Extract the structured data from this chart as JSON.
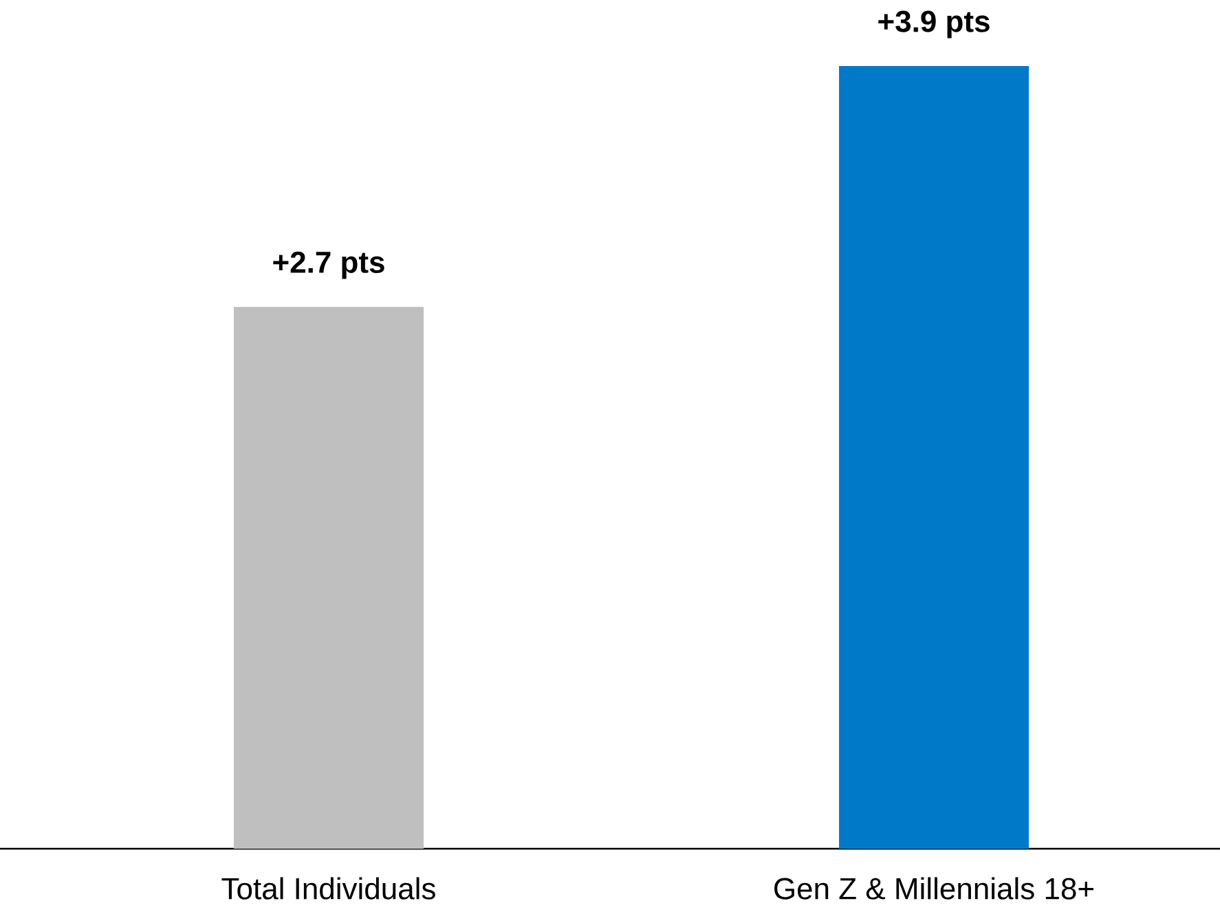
{
  "chart_data": {
    "type": "bar",
    "categories": [
      "Total Individuals",
      "Gen Z & Millennials 18+"
    ],
    "values": [
      2.7,
      3.9
    ],
    "value_labels": [
      "+2.7 pts",
      "+3.9 pts"
    ],
    "colors": [
      "#bfbfbf",
      "#007ac8"
    ]
  }
}
